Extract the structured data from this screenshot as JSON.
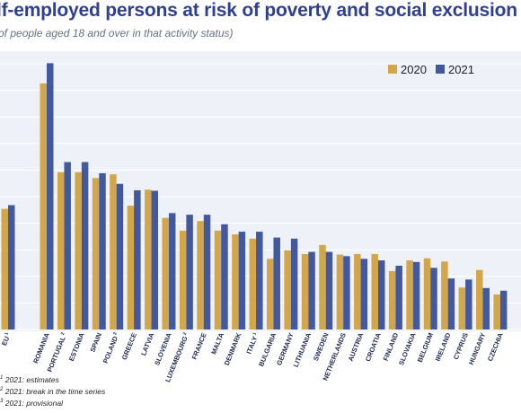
{
  "title": "lf-employed persons at risk of poverty and social exclusion",
  "subtitle": "of people aged 18 and over in that activity status)",
  "footnotes": [
    {
      "mark": "1",
      "text": "2021: estimates"
    },
    {
      "mark": "2",
      "text": "2021: break in the time series"
    },
    {
      "mark": "3",
      "text": "2021: provisional"
    }
  ],
  "colors": {
    "series_2020": "#d4a64a",
    "series_2021": "#42599d",
    "plot_bg": "#eef1f8",
    "title": "#2f3f93"
  },
  "chart_data": {
    "type": "bar",
    "title": "lf-employed persons at risk of poverty and social exclusion",
    "ylim": [
      0,
      50
    ],
    "grid": true,
    "legend_position": "top-right",
    "categories": [
      "EU",
      "ROMANIA",
      "PORTUGAL",
      "ESTONIA",
      "SPAIN",
      "POLAND",
      "GREECE",
      "LATVIA",
      "SLOVENIA",
      "LUXEMBOURG",
      "FRANCE",
      "MALTA",
      "DENMARK",
      "ITALY",
      "BULGARIA",
      "GERMANY",
      "LITHUANIA",
      "SWEDEN",
      "NETHERLANDS",
      "AUSTRIA",
      "CROATIA",
      "FINLAND",
      "SLOVAKIA",
      "BELGIUM",
      "IRELAND",
      "CYPRUS",
      "HUNGARY",
      "CZECHIA"
    ],
    "category_marks": [
      "1",
      "",
      "2",
      "",
      "",
      "3",
      "",
      "",
      "",
      "2",
      "",
      "",
      "",
      "1",
      "",
      "",
      "",
      "",
      "",
      "",
      "",
      "",
      "",
      "",
      "",
      "",
      "",
      ""
    ],
    "series": [
      {
        "name": "2020",
        "values": [
          22.7,
          46.3,
          29.6,
          29.6,
          28.5,
          29.2,
          23.3,
          26.3,
          21.0,
          18.6,
          20.4,
          18.6,
          17.9,
          17.1,
          13.3,
          14.9,
          14.2,
          15.9,
          14.1,
          14.2,
          14.2,
          11.0,
          13.0,
          13.4,
          12.8,
          7.9,
          11.2,
          6.6
        ],
        "color": "#d4a64a"
      },
      {
        "name": "2021",
        "values": [
          23.4,
          50.1,
          31.5,
          31.5,
          29.4,
          27.4,
          26.2,
          26.1,
          21.9,
          21.6,
          21.6,
          19.8,
          18.4,
          18.4,
          17.3,
          17.1,
          14.6,
          14.6,
          13.8,
          13.3,
          13.0,
          12.0,
          12.7,
          11.6,
          9.6,
          9.4,
          7.8,
          7.3
        ],
        "color": "#42599d"
      }
    ]
  }
}
